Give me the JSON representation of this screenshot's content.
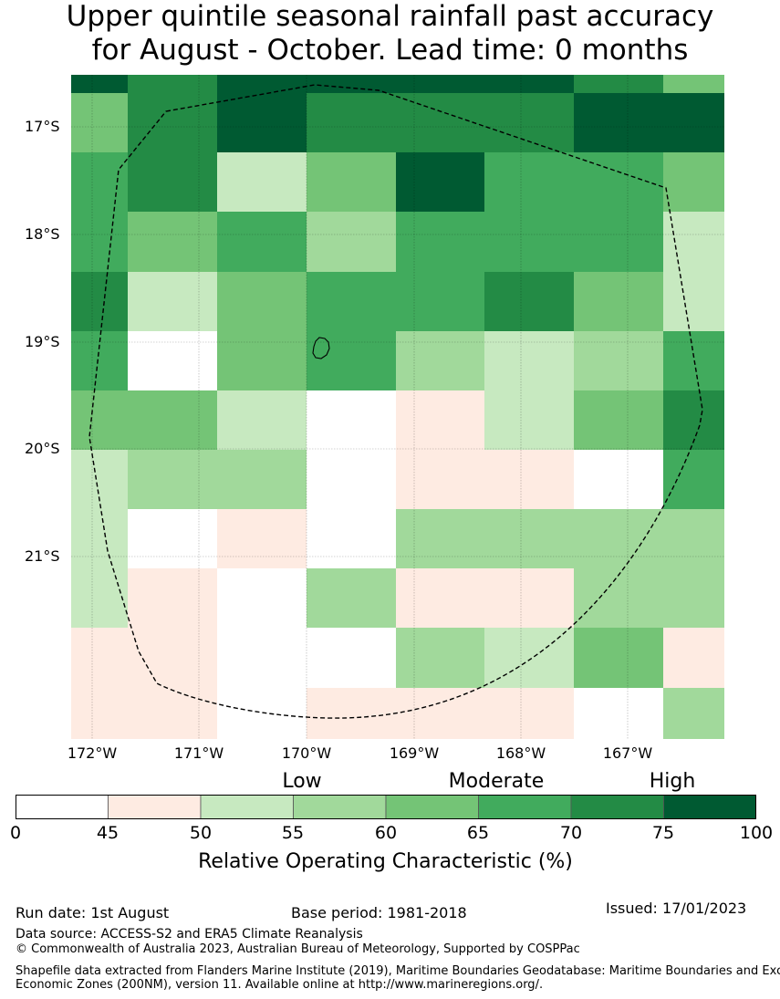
{
  "title_line1": "Upper quintile seasonal rainfall past accuracy",
  "title_line2": "for August - October. Lead time: 0 months",
  "map": {
    "lat_labels": [
      "17°S",
      "18°S",
      "19°S",
      "20°S",
      "21°S"
    ],
    "lon_labels": [
      "172°W",
      "171°W",
      "170°W",
      "169°W",
      "168°W",
      "167°W"
    ],
    "grid": [
      [
        7,
        6,
        7,
        7,
        7,
        7,
        6,
        4
      ],
      [
        4,
        6,
        7,
        6,
        6,
        6,
        7,
        7
      ],
      [
        5,
        6,
        2,
        4,
        7,
        5,
        5,
        4
      ],
      [
        5,
        4,
        5,
        3,
        5,
        5,
        5,
        2
      ],
      [
        6,
        2,
        4,
        5,
        5,
        6,
        4,
        2
      ],
      [
        5,
        0,
        4,
        5,
        3,
        2,
        3,
        5
      ],
      [
        4,
        4,
        2,
        0,
        1,
        2,
        4,
        6
      ],
      [
        2,
        3,
        3,
        0,
        1,
        1,
        0,
        5
      ],
      [
        2,
        0,
        1,
        0,
        3,
        3,
        3,
        3
      ],
      [
        2,
        1,
        0,
        3,
        1,
        1,
        3,
        3
      ],
      [
        1,
        1,
        0,
        0,
        3,
        2,
        4,
        1
      ],
      [
        1,
        1,
        0,
        1,
        1,
        1,
        0,
        3
      ]
    ]
  },
  "colorbar": {
    "categories": [
      "Low",
      "Moderate",
      "High"
    ],
    "ticks": [
      "0",
      "45",
      "50",
      "55",
      "60",
      "65",
      "70",
      "75",
      "100"
    ],
    "colors": [
      "#ffffff",
      "#feebe2",
      "#c7e9c0",
      "#a1d99b",
      "#74c476",
      "#41ab5d",
      "#238b45",
      "#005a32"
    ],
    "title": "Relative Operating Characteristic (%)"
  },
  "footer": {
    "run_date": "Run date: 1st August",
    "base_period": "Base period: 1981-2018",
    "issued": "Issued: 17/01/2023",
    "data_source": "Data source: ACCESS-S2 and ERA5 Climate Reanalysis",
    "copyright": "© Commonwealth of Australia 2023, Australian Bureau of Meteorology, Supported by COSPPac",
    "shapefile_line1": "Shapefile data extracted from Flanders Marine Institute (2019), Maritime Boundaries Geodatabase: Maritime Boundaries and Exclusive",
    "shapefile_line2": "Economic Zones (200NM), version 11. Available online at http://www.marineregions.org/."
  }
}
